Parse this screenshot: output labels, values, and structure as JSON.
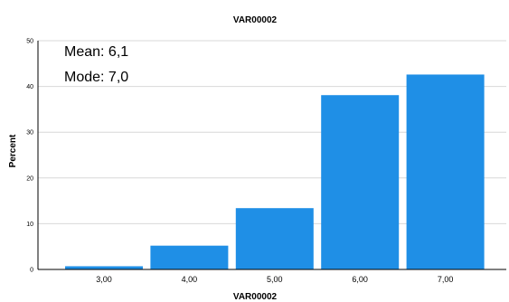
{
  "chart_data": {
    "type": "bar",
    "title": "VAR00002",
    "xlabel": "VAR00002",
    "ylabel": "Percent",
    "categories": [
      "3,00",
      "4,00",
      "5,00",
      "6,00",
      "7,00"
    ],
    "values": [
      0.7,
      5.2,
      13.4,
      38.1,
      42.6
    ],
    "ylim": [
      0,
      50
    ],
    "yticks": [
      "0",
      "10",
      "20",
      "30",
      "40",
      "50"
    ],
    "grid": true,
    "bar_color": "#1f8fe6",
    "annotations": [
      "Mean: 6,1",
      "Mode: 7,0"
    ]
  }
}
